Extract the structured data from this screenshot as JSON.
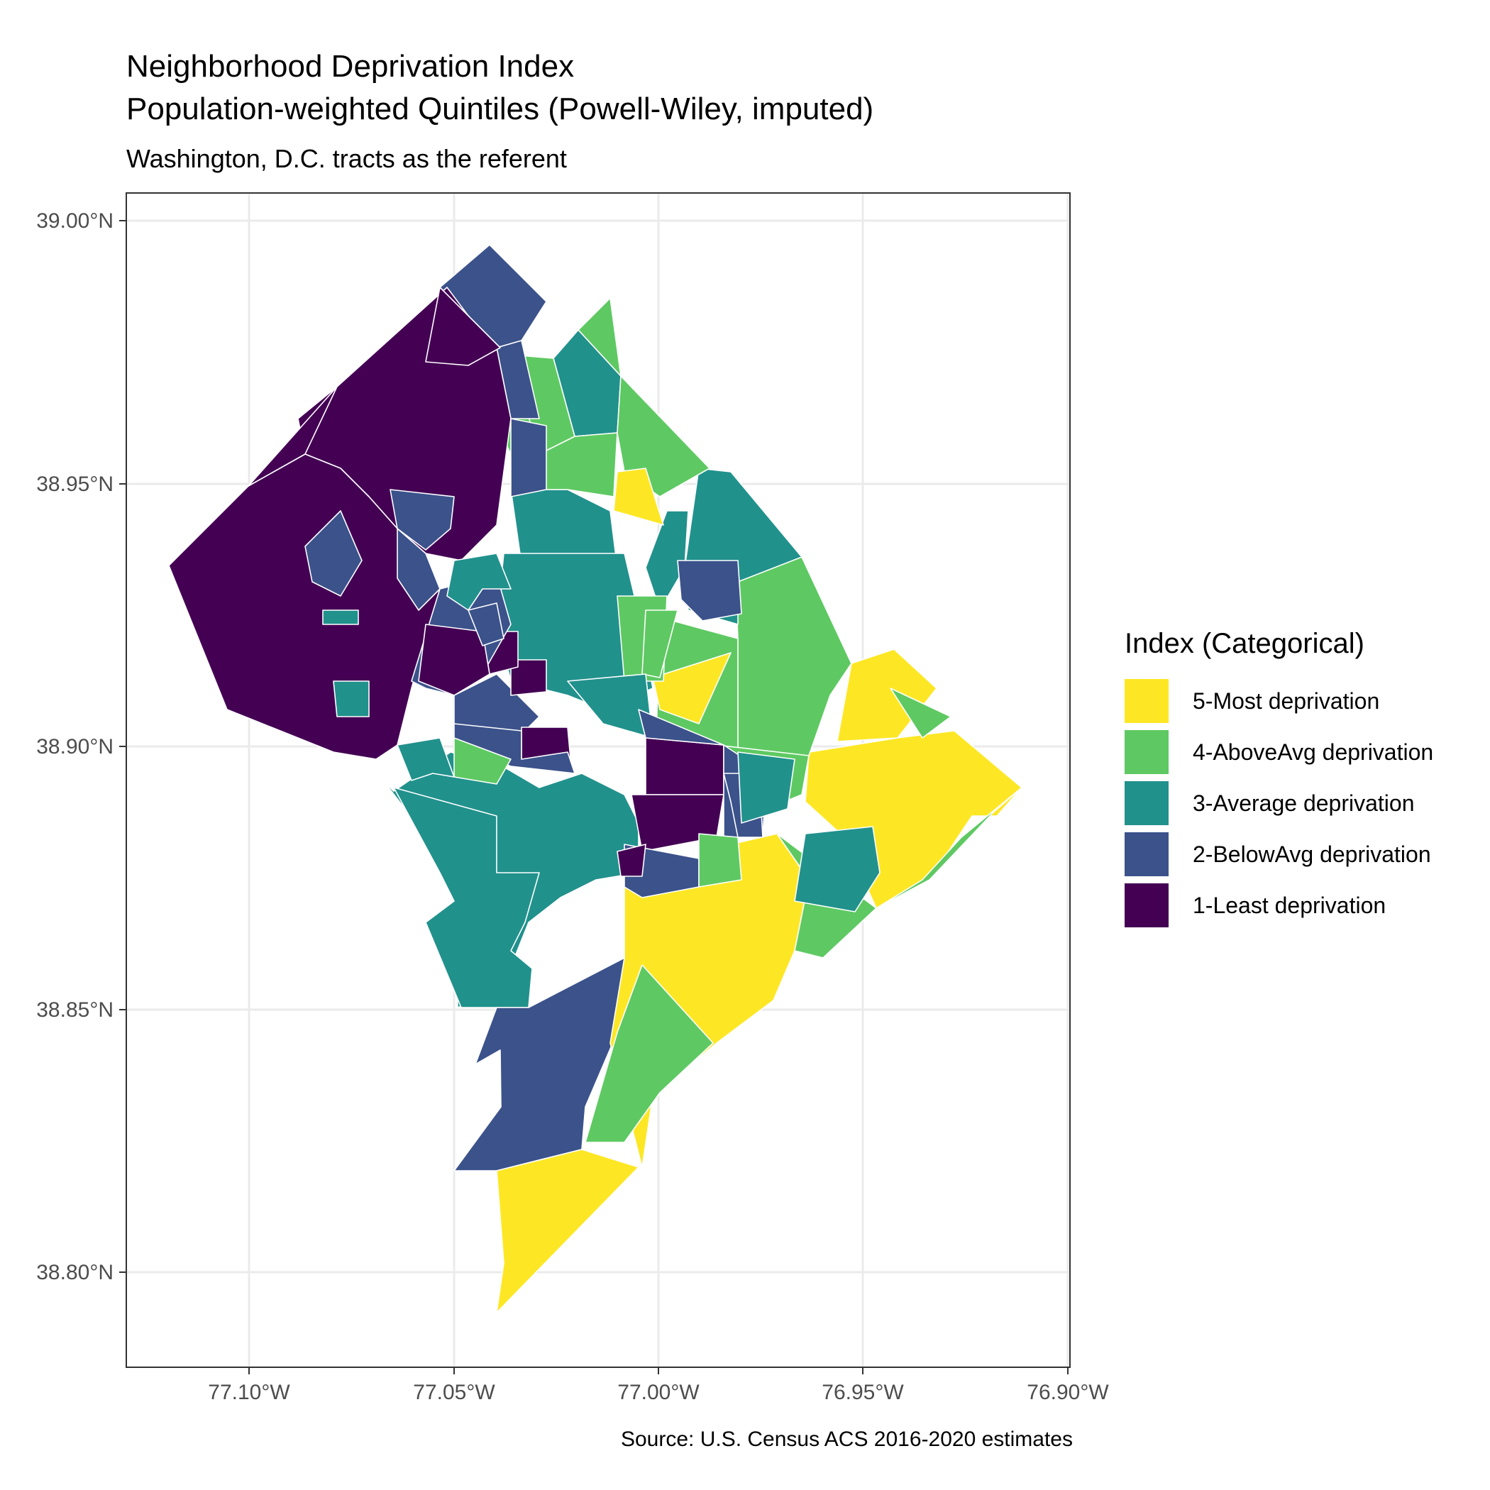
{
  "title_line1": "Neighborhood Deprivation Index",
  "title_line2": "Population-weighted Quintiles (Powell-Wiley, imputed)",
  "subtitle": "Washington, D.C. tracts as the referent",
  "caption": "Source: U.S. Census ACS 2016-2020 estimates",
  "legend": {
    "title": "Index (Categorical)",
    "items": [
      {
        "label": "5-Most deprivation",
        "color": "#FDE725"
      },
      {
        "label": "4-AboveAvg deprivation",
        "color": "#5EC962"
      },
      {
        "label": "3-Average deprivation",
        "color": "#21918C"
      },
      {
        "label": "2-BelowAvg deprivation",
        "color": "#3B528B"
      },
      {
        "label": "1-Least deprivation",
        "color": "#440154"
      }
    ]
  },
  "axes": {
    "y_ticks": [
      "38.80°N",
      "38.85°N",
      "38.90°N",
      "38.95°N",
      "39.00°N"
    ],
    "x_ticks": [
      "77.10°W",
      "77.05°W",
      "77.00°W",
      "76.95°W",
      "76.90°W"
    ]
  }
}
